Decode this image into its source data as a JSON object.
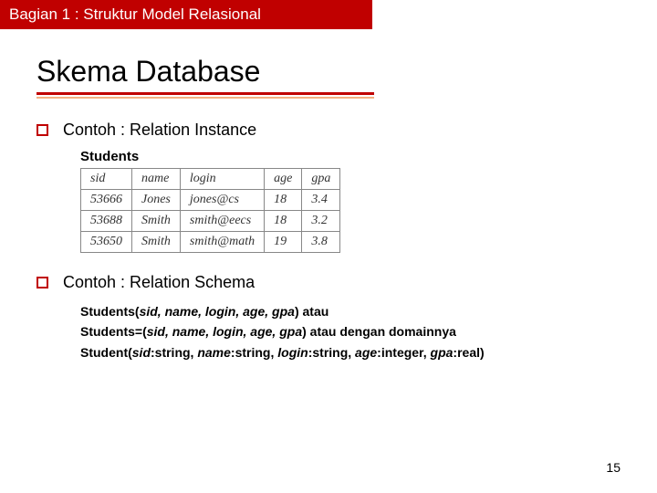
{
  "header": {
    "label": "Bagian 1 : Struktur Model Relasional"
  },
  "title": "Skema Database",
  "bullets": {
    "instance_label": "Contoh : Relation Instance",
    "schema_label": "Contoh : Relation Schema"
  },
  "students": {
    "caption": "Students",
    "columns": [
      "sid",
      "name",
      "login",
      "age",
      "gpa"
    ],
    "rows": [
      [
        "53666",
        "Jones",
        "jones@cs",
        "18",
        "3.4"
      ],
      [
        "53688",
        "Smith",
        "smith@eecs",
        "18",
        "3.2"
      ],
      [
        "53650",
        "Smith",
        "smith@math",
        "19",
        "3.8"
      ]
    ]
  },
  "schema": {
    "line1_bold": "Students(",
    "line1_italic": "sid, name, login, age, gpa",
    "line1_tail": ") atau",
    "line2_bold": "Students=(",
    "line2_italic": "sid, name, login, age, gpa",
    "line2_tail": ") atau dengan domainnya",
    "line3_bold_a": "Student(",
    "line3_i1": "sid",
    "line3_b2": ":string, ",
    "line3_i2": "name",
    "line3_b3": ":string, ",
    "line3_i3": "login",
    "line3_b4": ":string, ",
    "line3_i4": "age",
    "line3_b5": ":integer, ",
    "line3_i5": "gpa",
    "line3_b6": ":real)"
  },
  "page_number": "15",
  "colors": {
    "accent": "#c00000",
    "underline2": "#f4b183"
  }
}
